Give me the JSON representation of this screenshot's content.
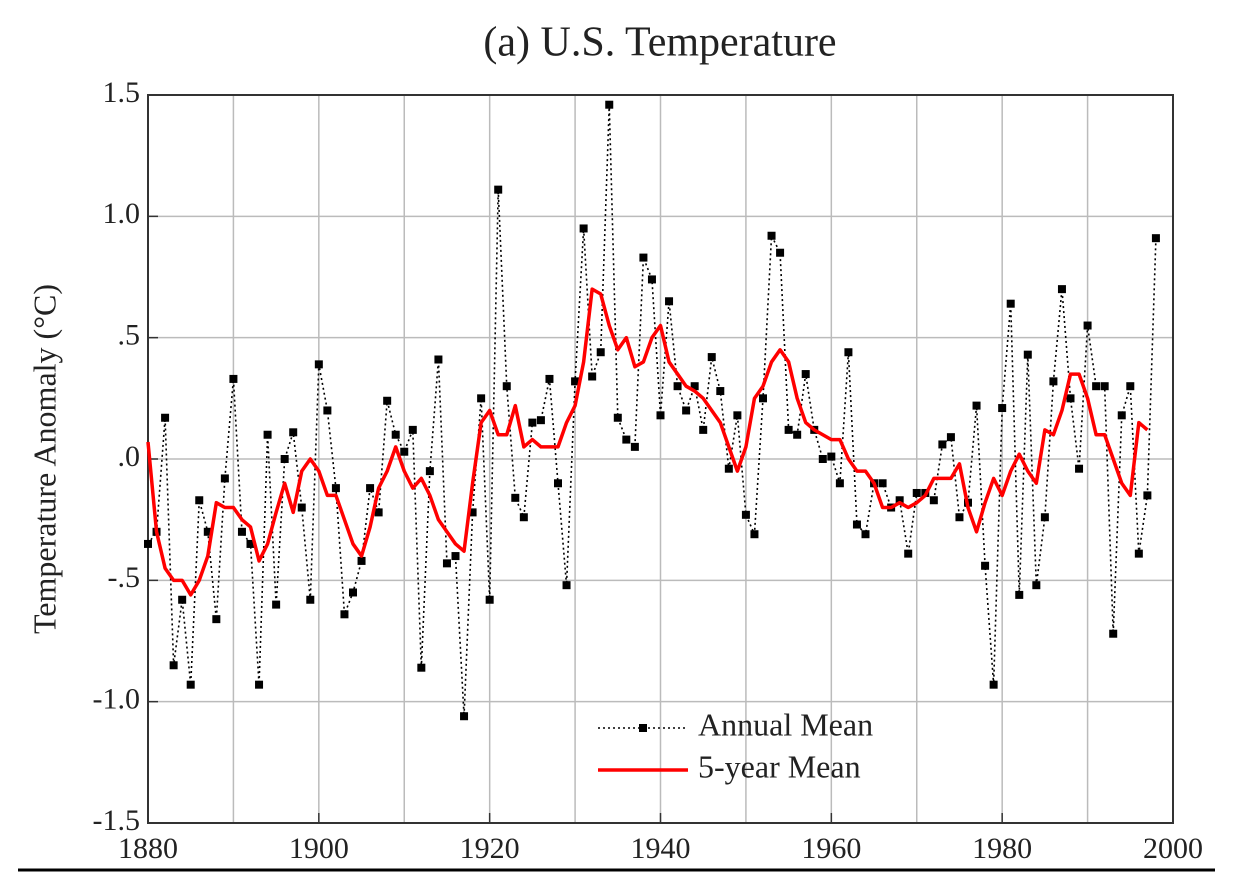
{
  "chart_data": {
    "type": "line",
    "title": "(a)  U.S. Temperature",
    "y_label": "Temperature Anomaly (°C)",
    "x": [
      1880,
      1881,
      1882,
      1883,
      1884,
      1885,
      1886,
      1887,
      1888,
      1889,
      1890,
      1891,
      1892,
      1893,
      1894,
      1895,
      1896,
      1897,
      1898,
      1899,
      1900,
      1901,
      1902,
      1903,
      1904,
      1905,
      1906,
      1907,
      1908,
      1909,
      1910,
      1911,
      1912,
      1913,
      1914,
      1915,
      1916,
      1917,
      1918,
      1919,
      1920,
      1921,
      1922,
      1923,
      1924,
      1925,
      1926,
      1927,
      1928,
      1929,
      1930,
      1931,
      1932,
      1933,
      1934,
      1935,
      1936,
      1937,
      1938,
      1939,
      1940,
      1941,
      1942,
      1943,
      1944,
      1945,
      1946,
      1947,
      1948,
      1949,
      1950,
      1951,
      1952,
      1953,
      1954,
      1955,
      1956,
      1957,
      1958,
      1959,
      1960,
      1961,
      1962,
      1963,
      1964,
      1965,
      1966,
      1967,
      1968,
      1969,
      1970,
      1971,
      1972,
      1973,
      1974,
      1975,
      1976,
      1977,
      1978,
      1979,
      1980,
      1981,
      1982,
      1983,
      1984,
      1985,
      1986,
      1987,
      1988,
      1989,
      1990,
      1991,
      1992,
      1993,
      1994,
      1995,
      1996,
      1997,
      1998
    ],
    "series": [
      {
        "name": "Annual Mean",
        "color": "#000000",
        "style": "dotted-markers",
        "values": [
          -0.35,
          -0.3,
          0.17,
          -0.85,
          -0.58,
          -0.93,
          -0.17,
          -0.3,
          -0.66,
          -0.08,
          0.33,
          -0.3,
          -0.35,
          -0.93,
          0.1,
          -0.6,
          0.0,
          0.11,
          -0.2,
          -0.58,
          0.39,
          0.2,
          -0.12,
          -0.64,
          -0.55,
          -0.42,
          -0.12,
          -0.22,
          0.24,
          0.1,
          0.03,
          0.12,
          -0.86,
          -0.05,
          0.41,
          -0.43,
          -0.4,
          -1.06,
          -0.22,
          0.25,
          -0.58,
          1.11,
          0.3,
          -0.16,
          -0.24,
          0.15,
          0.16,
          0.33,
          -0.1,
          -0.52,
          0.32,
          0.95,
          0.34,
          0.44,
          1.46,
          0.17,
          0.08,
          0.05,
          0.83,
          0.74,
          0.18,
          0.65,
          0.3,
          0.2,
          0.3,
          0.12,
          0.42,
          0.28,
          -0.04,
          0.18,
          -0.23,
          -0.31,
          0.25,
          0.92,
          0.85,
          0.12,
          0.1,
          0.35,
          0.12,
          0.0,
          0.01,
          -0.1,
          0.44,
          -0.27,
          -0.31,
          -0.1,
          -0.1,
          -0.2,
          -0.17,
          -0.39,
          -0.14,
          -0.14,
          -0.17,
          0.06,
          0.09,
          -0.24,
          -0.18,
          0.22,
          -0.44,
          -0.93,
          0.21,
          0.64,
          -0.56,
          0.43,
          -0.52,
          -0.24,
          0.32,
          0.7,
          0.25,
          -0.04,
          0.55,
          0.3,
          0.3,
          -0.72,
          0.18,
          0.3,
          -0.39,
          -0.15,
          0.91
        ]
      },
      {
        "name": "5-year Mean",
        "color": "#ff0000",
        "style": "solid",
        "values": [
          0.07,
          -0.3,
          -0.45,
          -0.5,
          -0.5,
          -0.56,
          -0.5,
          -0.4,
          -0.18,
          -0.2,
          -0.2,
          -0.25,
          -0.28,
          -0.42,
          -0.35,
          -0.22,
          -0.1,
          -0.22,
          -0.05,
          0.0,
          -0.05,
          -0.15,
          -0.15,
          -0.25,
          -0.35,
          -0.4,
          -0.28,
          -0.12,
          -0.05,
          0.05,
          -0.05,
          -0.12,
          -0.08,
          -0.15,
          -0.25,
          -0.3,
          -0.35,
          -0.38,
          -0.1,
          0.15,
          0.2,
          0.1,
          0.1,
          0.22,
          0.05,
          0.08,
          0.05,
          0.05,
          0.05,
          0.15,
          0.22,
          0.4,
          0.7,
          0.68,
          0.55,
          0.45,
          0.5,
          0.38,
          0.4,
          0.5,
          0.55,
          0.4,
          0.35,
          0.3,
          0.28,
          0.25,
          0.2,
          0.15,
          0.05,
          -0.05,
          0.05,
          0.25,
          0.3,
          0.4,
          0.45,
          0.4,
          0.25,
          0.15,
          0.12,
          0.1,
          0.08,
          0.08,
          0.0,
          -0.05,
          -0.05,
          -0.1,
          -0.2,
          -0.2,
          -0.18,
          -0.2,
          -0.18,
          -0.15,
          -0.08,
          -0.08,
          -0.08,
          -0.02,
          -0.2,
          -0.3,
          -0.18,
          -0.08,
          -0.15,
          -0.05,
          0.02,
          -0.05,
          -0.1,
          0.12,
          0.1,
          0.2,
          0.35,
          0.35,
          0.25,
          0.1,
          0.1,
          0.0,
          -0.1,
          -0.15,
          0.15,
          0.12,
          null
        ]
      }
    ],
    "xlim": [
      1880,
      2000
    ],
    "xticks": [
      1880,
      1900,
      1920,
      1940,
      1960,
      1980,
      2000
    ],
    "xgrid": [
      1890,
      1900,
      1910,
      1920,
      1930,
      1940,
      1950,
      1960,
      1970,
      1980,
      1990
    ],
    "ylim": [
      -1.5,
      1.5
    ],
    "yticks": [
      {
        "value": -1.5,
        "label": "-1.5"
      },
      {
        "value": -1.0,
        "label": "-1.0"
      },
      {
        "value": -0.5,
        "label": "-.5"
      },
      {
        "value": 0,
        "label": ".0"
      },
      {
        "value": 0.5,
        "label": ".5"
      },
      {
        "value": 1.0,
        "label": "1.0"
      },
      {
        "value": 1.5,
        "label": "1.5"
      }
    ],
    "grid": true,
    "legend": "lower-center"
  }
}
